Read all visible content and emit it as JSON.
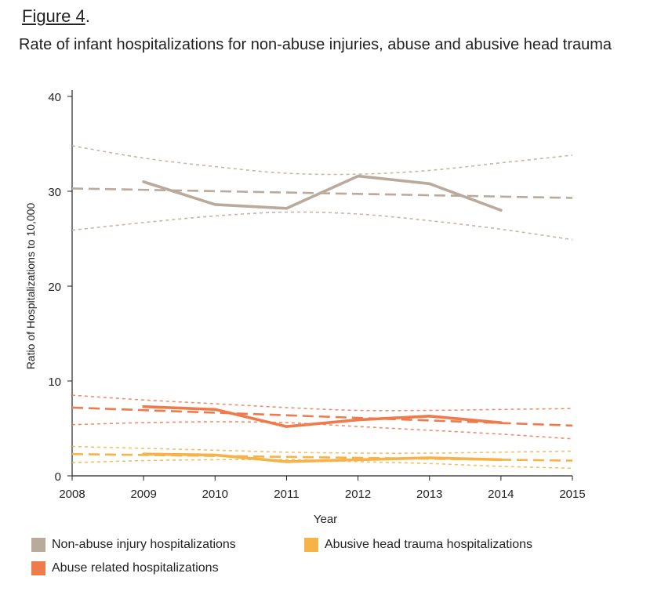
{
  "figure": {
    "label_word": "Figure 4",
    "label_suffix": "."
  },
  "title": "Rate of infant hospitalizations for non-abuse injuries, abuse and abusive head trauma",
  "colors": {
    "non_abuse": "#b9aa9c",
    "abuse": "#ef7a4c",
    "aht": "#f7b347",
    "axis": "#222222"
  },
  "legend": [
    {
      "label": "Non-abuse injury hospitalizations",
      "color": "#b9aa9c"
    },
    {
      "label": "Abusive head trauma hospitalizations",
      "color": "#f7b347"
    },
    {
      "label": "Abuse related hospitalizations",
      "color": "#ef7a4c"
    }
  ],
  "chart_data": {
    "type": "line",
    "xlabel": "Year",
    "ylabel": "Ratio of Hospitalizations to 10,000",
    "xlim": [
      2008,
      2015
    ],
    "ylim": [
      0,
      40
    ],
    "x_ticks": [
      "2008",
      "2009",
      "2010",
      "2011",
      "2012",
      "2013",
      "2014",
      "2015"
    ],
    "y_ticks": [
      "0",
      "10",
      "20",
      "30",
      "40"
    ],
    "grid": false,
    "legend_position": "bottom",
    "series": [
      {
        "key": "non_abuse",
        "name": "Non-abuse injury hospitalizations",
        "color": "#b9aa9c",
        "x": [
          2009,
          2010,
          2011,
          2012,
          2013,
          2014
        ],
        "values": [
          31.0,
          28.6,
          28.2,
          31.6,
          30.8,
          28.0
        ],
        "trend": {
          "x": [
            2008,
            2015
          ],
          "y": [
            30.3,
            29.3
          ]
        },
        "ci_upper": {
          "x": [
            2008,
            2009,
            2010,
            2011,
            2012,
            2013,
            2014,
            2015
          ],
          "y": [
            34.8,
            33.5,
            32.6,
            31.9,
            31.8,
            32.2,
            33.0,
            33.8
          ]
        },
        "ci_lower": {
          "x": [
            2008,
            2009,
            2010,
            2011,
            2012,
            2013,
            2014,
            2015
          ],
          "y": [
            25.9,
            26.7,
            27.4,
            27.8,
            27.6,
            26.9,
            26.0,
            24.9
          ]
        }
      },
      {
        "key": "abuse",
        "name": "Abuse related hospitalizations",
        "color": "#ef7a4c",
        "x": [
          2009,
          2010,
          2011,
          2012,
          2013,
          2014
        ],
        "values": [
          7.3,
          7.0,
          5.2,
          5.9,
          6.3,
          5.6
        ],
        "trend": {
          "x": [
            2008,
            2015
          ],
          "y": [
            7.2,
            5.3
          ]
        },
        "ci_upper": {
          "x": [
            2008,
            2009,
            2010,
            2011,
            2012,
            2013,
            2014,
            2015
          ],
          "y": [
            8.5,
            8.0,
            7.6,
            7.2,
            6.9,
            6.9,
            7.0,
            7.1
          ]
        },
        "ci_lower": {
          "x": [
            2008,
            2009,
            2010,
            2011,
            2012,
            2013,
            2014,
            2015
          ],
          "y": [
            5.4,
            5.6,
            5.7,
            5.6,
            5.2,
            4.8,
            4.4,
            3.9
          ]
        }
      },
      {
        "key": "aht",
        "name": "Abusive head trauma hospitalizations",
        "color": "#f7b347",
        "x": [
          2009,
          2010,
          2011,
          2012,
          2013,
          2014
        ],
        "values": [
          2.3,
          2.2,
          1.5,
          1.7,
          1.9,
          1.7
        ],
        "trend": {
          "x": [
            2008,
            2015
          ],
          "y": [
            2.3,
            1.6
          ]
        },
        "ci_upper": {
          "x": [
            2008,
            2009,
            2010,
            2011,
            2012,
            2013,
            2014,
            2015
          ],
          "y": [
            3.1,
            2.9,
            2.7,
            2.5,
            2.4,
            2.4,
            2.5,
            2.6
          ]
        },
        "ci_lower": {
          "x": [
            2008,
            2009,
            2010,
            2011,
            2012,
            2013,
            2014,
            2015
          ],
          "y": [
            1.4,
            1.6,
            1.7,
            1.7,
            1.5,
            1.3,
            1.0,
            0.8
          ]
        }
      }
    ]
  }
}
